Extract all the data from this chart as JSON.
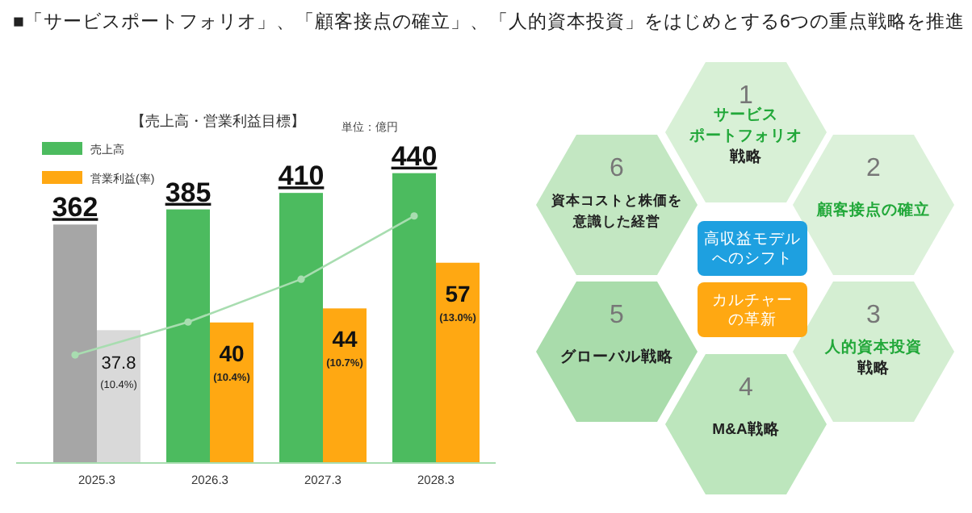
{
  "chart_data": [
    {
      "type": "bar",
      "title": "■「サービスポートフォリオ」、「顧客接点の確立」、「人的資本投資」をはじめとする6つの重点戦略を推進",
      "subtitle": "【売上高・営業利益目標】",
      "annotations": [
        "単位：億円"
      ],
      "categories": [
        "2025.3",
        "2026.3",
        "2027.3",
        "2028.3"
      ],
      "ylim": [
        0,
        480
      ],
      "y2lim": [
        0,
        90
      ],
      "tick_labels": "x",
      "legend": "top left",
      "series": [
        {
          "name": "売上高",
          "color": "#4cbb5f",
          "colors": [
            "#a6a6a6",
            "#4cbb5f",
            "#4cbb5f",
            "#4cbb5f"
          ],
          "values": [
            362,
            385,
            410,
            440
          ],
          "value_labels": [
            "362",
            "385",
            "410",
            "440"
          ]
        },
        {
          "name": "営業利益(率)",
          "axis": "y2",
          "color": "#ffa812",
          "colors": [
            "#d9d9d9",
            "#ffa812",
            "#ffa812",
            "#ffa812"
          ],
          "values": [
            37.8,
            40,
            44,
            57
          ],
          "value_labels": [
            "37.8\n(10.4%)",
            "40\n(10.4%)",
            "44\n(10.7%)",
            "57\n(13.0%)"
          ]
        },
        {
          "type": "line",
          "color": "#a8ddb0",
          "marker": "circle",
          "values": [
            164,
            214,
            279,
            375
          ]
        }
      ]
    },
    {
      "type": "other",
      "annotations": [
        "1",
        "サービス",
        "ポートフォリオ",
        "戦略",
        "2",
        "顧客接点の確立",
        "3",
        "人的資本投資",
        "戦略",
        "4",
        "M&A戦略",
        "5",
        "グローバル戦略",
        "6",
        "資本コストと株価を",
        "意識した経営",
        "高収益モデル",
        "へのシフト",
        "カルチャー",
        "の革新"
      ]
    }
  ]
}
